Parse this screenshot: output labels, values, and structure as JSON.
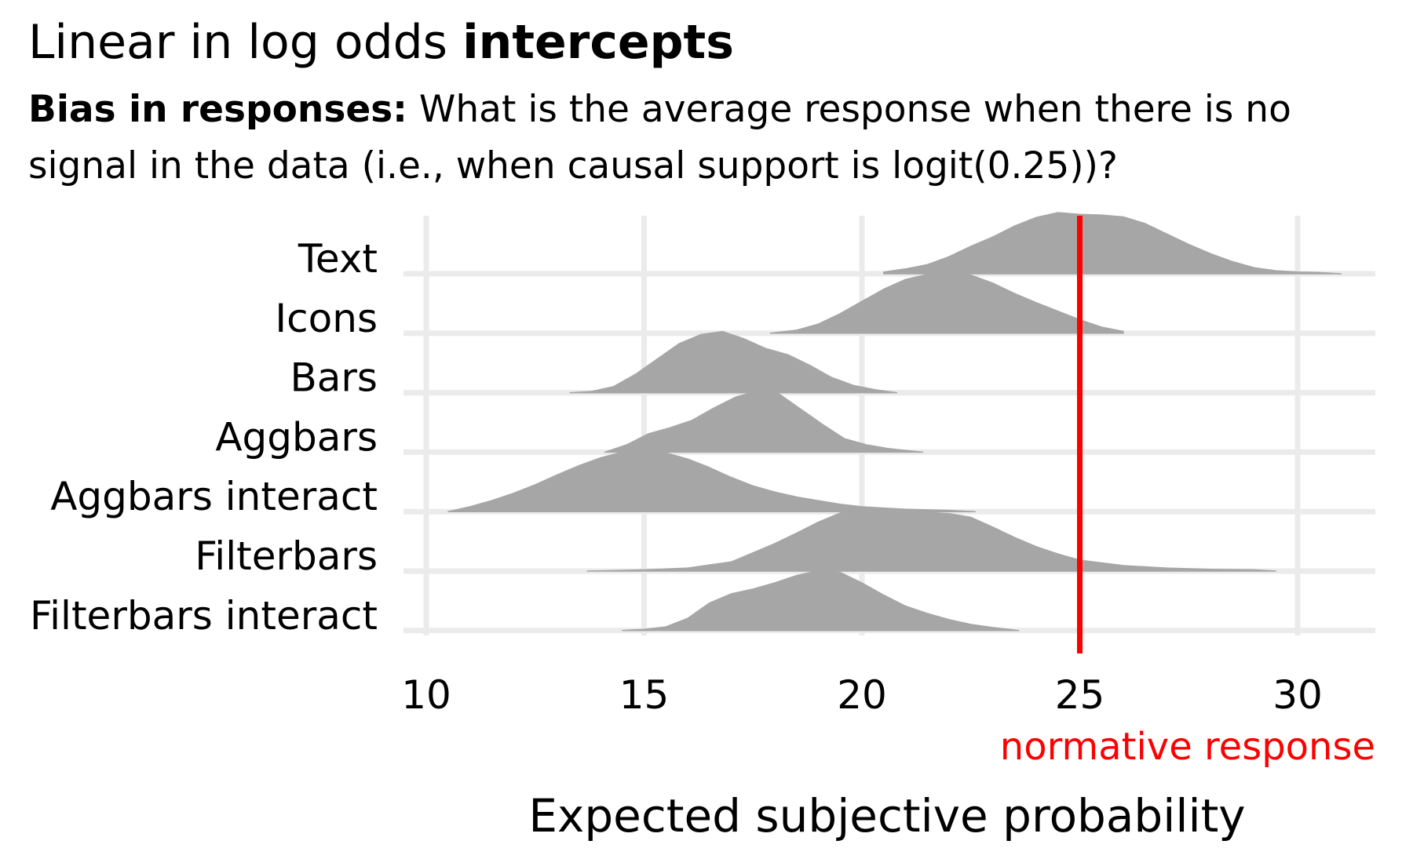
{
  "title": {
    "regular": "Linear in log odds ",
    "bold": "intercepts"
  },
  "subtitle": {
    "bold": "Bias in responses:",
    "text": " What is the average response when there is no signal in the data (i.e., when causal support is logit(0.25))?"
  },
  "colors": {
    "density_fill": "#a6a6a6",
    "grid": "#ebebeb",
    "reference_line": "#ff0000"
  },
  "chart_data": {
    "type": "ridgeline density",
    "xlabel": "Expected subjective probability",
    "xlim": [
      9.5,
      32
    ],
    "x_ticks": [
      10,
      15,
      20,
      25,
      30
    ],
    "grid": true,
    "reference_line": {
      "value": 25,
      "label": "normative response"
    },
    "categories": [
      "Text",
      "Icons",
      "Bars",
      "Aggbars",
      "Aggbars interact",
      "Filterbars",
      "Filterbars interact"
    ],
    "densities": [
      {
        "name": "Text",
        "x": [
          20.5,
          21.0,
          21.5,
          22.0,
          22.5,
          23.0,
          23.5,
          24.0,
          24.5,
          25.0,
          25.5,
          26.0,
          26.5,
          27.0,
          27.5,
          28.0,
          28.5,
          29.0,
          29.5,
          30.0,
          30.5,
          31.0
        ],
        "density": [
          0.03,
          0.08,
          0.15,
          0.28,
          0.45,
          0.6,
          0.78,
          0.92,
          1.0,
          0.97,
          0.96,
          0.93,
          0.82,
          0.65,
          0.48,
          0.33,
          0.2,
          0.1,
          0.05,
          0.03,
          0.02,
          0.0
        ]
      },
      {
        "name": "Icons",
        "x": [
          17.9,
          18.5,
          19.0,
          19.5,
          20.0,
          20.5,
          21.0,
          21.5,
          22.0,
          22.5,
          23.0,
          23.5,
          24.0,
          24.5,
          25.0,
          25.5,
          26.0
        ],
        "density": [
          0.0,
          0.05,
          0.15,
          0.32,
          0.52,
          0.72,
          0.88,
          0.96,
          1.0,
          0.95,
          0.82,
          0.65,
          0.5,
          0.36,
          0.22,
          0.1,
          0.03
        ]
      },
      {
        "name": "Bars",
        "x": [
          13.3,
          13.8,
          14.3,
          14.8,
          15.3,
          15.8,
          16.3,
          16.8,
          17.3,
          17.8,
          18.3,
          18.8,
          19.3,
          19.8,
          20.3,
          20.8
        ],
        "density": [
          0.0,
          0.02,
          0.1,
          0.3,
          0.55,
          0.8,
          0.95,
          1.0,
          0.88,
          0.72,
          0.62,
          0.45,
          0.25,
          0.12,
          0.05,
          0.0
        ]
      },
      {
        "name": "Aggbars",
        "x": [
          14.1,
          14.6,
          15.1,
          15.6,
          16.1,
          16.6,
          17.1,
          17.6,
          18.1,
          18.6,
          19.1,
          19.6,
          20.1,
          20.6,
          21.1,
          21.4
        ],
        "density": [
          0.0,
          0.12,
          0.3,
          0.4,
          0.52,
          0.72,
          0.9,
          1.0,
          0.95,
          0.7,
          0.45,
          0.22,
          0.12,
          0.06,
          0.02,
          0.0
        ]
      },
      {
        "name": "Aggbars interact",
        "x": [
          10.5,
          11.0,
          11.5,
          12.0,
          12.5,
          13.0,
          13.5,
          14.0,
          14.5,
          15.0,
          15.5,
          16.0,
          16.5,
          17.0,
          17.5,
          18.0,
          18.5,
          19.0,
          19.5,
          20.0,
          21.0,
          22.0,
          22.6
        ],
        "density": [
          0.0,
          0.08,
          0.18,
          0.3,
          0.44,
          0.6,
          0.75,
          0.88,
          0.97,
          1.0,
          0.96,
          0.86,
          0.72,
          0.56,
          0.42,
          0.32,
          0.24,
          0.18,
          0.12,
          0.08,
          0.04,
          0.02,
          0.0
        ]
      },
      {
        "name": "Filterbars",
        "x": [
          13.7,
          15.0,
          16.0,
          17.0,
          18.0,
          18.5,
          19.0,
          19.5,
          20.0,
          20.5,
          21.0,
          21.5,
          22.0,
          22.5,
          23.0,
          23.5,
          24.0,
          24.5,
          25.0,
          26.0,
          27.0,
          28.0,
          29.0,
          29.5
        ],
        "density": [
          0.0,
          0.02,
          0.05,
          0.15,
          0.45,
          0.62,
          0.8,
          0.95,
          1.0,
          1.0,
          0.98,
          0.96,
          0.94,
          0.88,
          0.72,
          0.55,
          0.4,
          0.28,
          0.18,
          0.09,
          0.05,
          0.03,
          0.02,
          0.0
        ]
      },
      {
        "name": "Filterbars interact",
        "x": [
          14.5,
          15.0,
          15.5,
          16.0,
          16.5,
          17.0,
          17.5,
          18.0,
          18.5,
          19.0,
          19.5,
          20.0,
          20.5,
          21.0,
          21.5,
          22.0,
          22.5,
          23.0,
          23.6
        ],
        "density": [
          0.0,
          0.02,
          0.06,
          0.2,
          0.45,
          0.6,
          0.68,
          0.78,
          0.9,
          0.98,
          0.95,
          0.78,
          0.58,
          0.4,
          0.28,
          0.18,
          0.1,
          0.05,
          0.0
        ]
      }
    ]
  }
}
